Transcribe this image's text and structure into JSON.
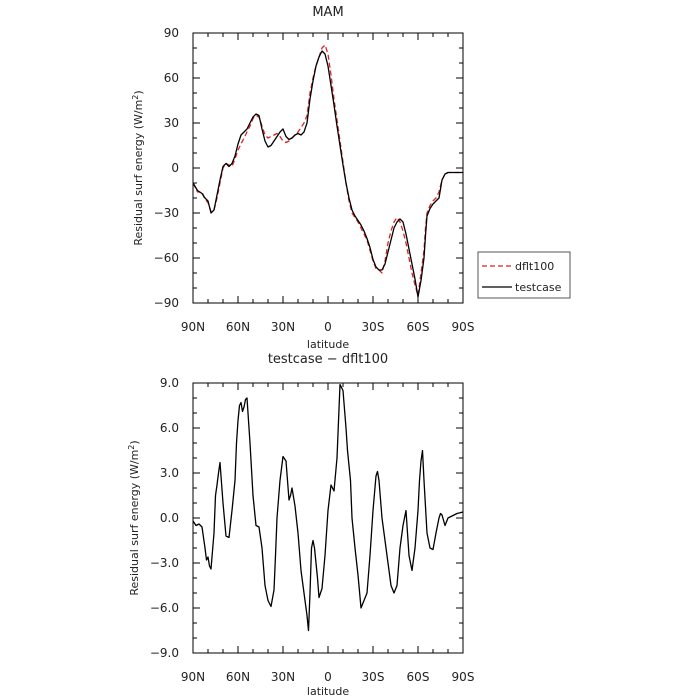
{
  "chart_data": [
    {
      "type": "line",
      "title": "MAM",
      "xlabel": "latitude",
      "ylabel": "Residual surf energy (W/m²)",
      "ylabel_main": "Residual surf energy (W/m",
      "ylabel_sup": "2",
      "ylabel_end": ")",
      "xlim": [
        90,
        -90
      ],
      "ylim": [
        -90,
        90
      ],
      "x_ticks": [
        {
          "value": 90,
          "label": "90N"
        },
        {
          "value": 60,
          "label": "60N"
        },
        {
          "value": 30,
          "label": "30N"
        },
        {
          "value": 0,
          "label": "0"
        },
        {
          "value": -30,
          "label": "30S"
        },
        {
          "value": -60,
          "label": "60S"
        },
        {
          "value": -90,
          "label": "90S"
        }
      ],
      "y_ticks": [
        {
          "value": 90,
          "label": "90"
        },
        {
          "value": 60,
          "label": "60"
        },
        {
          "value": 30,
          "label": "30"
        },
        {
          "value": 0,
          "label": "0"
        },
        {
          "value": -30,
          "label": "−30"
        },
        {
          "value": -60,
          "label": "−60"
        },
        {
          "value": -90,
          "label": "−90"
        }
      ],
      "legend": {
        "placement": "right-bottom",
        "entries": [
          "dflt100",
          "testcase"
        ]
      },
      "series": [
        {
          "name": "dflt100",
          "color": "#dd2222",
          "dash": true,
          "x": [
            90,
            87,
            84,
            82,
            80,
            78,
            76,
            74,
            72,
            70,
            68,
            66,
            64,
            62,
            60,
            58,
            56,
            54,
            52,
            50,
            48,
            46,
            44,
            42,
            40,
            38,
            36,
            34,
            32,
            30,
            28,
            26,
            24,
            22,
            20,
            18,
            16,
            14,
            12,
            10,
            8,
            6,
            4,
            2,
            0,
            -2,
            -4,
            -6,
            -8,
            -10,
            -12,
            -14,
            -16,
            -18,
            -20,
            -22,
            -24,
            -26,
            -28,
            -30,
            -32,
            -34,
            -36,
            -38,
            -40,
            -42,
            -44,
            -46,
            -48,
            -50,
            -52,
            -54,
            -56,
            -58,
            -60,
            -62,
            -64,
            -65,
            -66,
            -68,
            -70,
            -72,
            -74,
            -76,
            -78,
            -80,
            -82,
            -84,
            -86,
            -88,
            -90
          ],
          "values": [
            -10,
            -16,
            -16,
            -21,
            -23,
            -29,
            -28,
            -20,
            -10,
            0,
            3,
            2,
            1,
            6,
            12,
            16,
            20,
            24,
            28,
            33,
            35,
            34,
            28,
            22,
            20,
            21,
            22,
            23,
            21,
            18,
            17,
            18,
            20,
            22,
            24,
            27,
            30,
            35,
            50,
            60,
            68,
            74,
            80,
            82,
            76,
            62,
            46,
            32,
            18,
            4,
            -10,
            -22,
            -30,
            -33,
            -36,
            -40,
            -44,
            -48,
            -55,
            -62,
            -67,
            -68,
            -70,
            -62,
            -50,
            -42,
            -36,
            -33,
            -36,
            -42,
            -50,
            -60,
            -70,
            -78,
            -85,
            -70,
            -55,
            -40,
            -30,
            -25,
            -22,
            -20,
            -16,
            -8,
            -4,
            -3,
            -3,
            -3,
            -3,
            -3,
            -3
          ]
        },
        {
          "name": "testcase",
          "color": "#000000",
          "dash": false,
          "x": [
            90,
            87,
            84,
            82,
            80,
            78,
            76,
            74,
            72,
            70,
            68,
            66,
            64,
            62,
            60,
            58,
            56,
            54,
            52,
            50,
            48,
            46,
            44,
            42,
            40,
            38,
            36,
            34,
            32,
            30,
            28,
            26,
            24,
            22,
            20,
            18,
            16,
            14,
            12,
            10,
            8,
            6,
            4,
            2,
            0,
            -2,
            -4,
            -6,
            -8,
            -10,
            -12,
            -14,
            -16,
            -18,
            -20,
            -22,
            -24,
            -26,
            -28,
            -30,
            -32,
            -34,
            -36,
            -38,
            -40,
            -42,
            -44,
            -46,
            -48,
            -50,
            -52,
            -54,
            -56,
            -58,
            -60,
            -62,
            -64,
            -65,
            -66,
            -68,
            -70,
            -72,
            -74,
            -76,
            -78,
            -80,
            -82,
            -84,
            -86,
            -88,
            -90
          ],
          "values": [
            -10,
            -15,
            -17,
            -20,
            -22,
            -30,
            -28,
            -18,
            -8,
            1,
            3,
            1,
            3,
            8,
            16,
            22,
            24,
            26,
            30,
            34,
            36,
            35,
            26,
            18,
            14,
            15,
            18,
            21,
            24,
            26,
            21,
            19,
            20,
            22,
            23,
            22,
            24,
            30,
            46,
            58,
            68,
            74,
            78,
            76,
            68,
            55,
            42,
            28,
            15,
            2,
            -10,
            -20,
            -28,
            -32,
            -35,
            -38,
            -42,
            -47,
            -53,
            -61,
            -66,
            -68,
            -68,
            -64,
            -56,
            -48,
            -40,
            -36,
            -34,
            -36,
            -44,
            -54,
            -64,
            -74,
            -86,
            -75,
            -60,
            -45,
            -32,
            -27,
            -24,
            -22,
            -20,
            -8,
            -4,
            -3,
            -3,
            -3,
            -3,
            -3,
            -3
          ]
        }
      ]
    },
    {
      "type": "line",
      "title": "testcase − dflt100",
      "xlabel": "latitude",
      "ylabel": "Residual surf energy (W/m²)",
      "ylabel_main": "Residual surf energy (W/m",
      "ylabel_sup": "2",
      "ylabel_end": ")",
      "xlim": [
        90,
        -90
      ],
      "ylim": [
        -9,
        9
      ],
      "x_ticks": [
        {
          "value": 90,
          "label": "90N"
        },
        {
          "value": 60,
          "label": "60N"
        },
        {
          "value": 30,
          "label": "30N"
        },
        {
          "value": 0,
          "label": "0"
        },
        {
          "value": -30,
          "label": "30S"
        },
        {
          "value": -60,
          "label": "60S"
        },
        {
          "value": -90,
          "label": "90S"
        }
      ],
      "y_ticks": [
        {
          "value": 9,
          "label": "9.0"
        },
        {
          "value": 6,
          "label": "6.0"
        },
        {
          "value": 3,
          "label": "3.0"
        },
        {
          "value": 0,
          "label": "0.0"
        },
        {
          "value": -3,
          "label": "−3.0"
        },
        {
          "value": -6,
          "label": "−6.0"
        },
        {
          "value": -9,
          "label": "−9.0"
        }
      ],
      "series": [
        {
          "name": "testcase − dflt100",
          "color": "#000000",
          "dash": false,
          "x": [
            90,
            88,
            86,
            84,
            82,
            81,
            80,
            79,
            78,
            76,
            75,
            74,
            73,
            72,
            70,
            68,
            66,
            64,
            62,
            61,
            60,
            59,
            58,
            57,
            56,
            55,
            54,
            52,
            50,
            48,
            46,
            44,
            42,
            40,
            38,
            36,
            35,
            34,
            32,
            30,
            28,
            27,
            26,
            25,
            24,
            22,
            20,
            18,
            16,
            14,
            13,
            12,
            11,
            10,
            9,
            8,
            7,
            6,
            4,
            2,
            0,
            -2,
            -4,
            -6,
            -8,
            -10,
            -12,
            -13,
            -14,
            -15,
            -16,
            -18,
            -20,
            -22,
            -24,
            -26,
            -28,
            -30,
            -32,
            -33,
            -34,
            -36,
            -38,
            -40,
            -42,
            -44,
            -46,
            -48,
            -50,
            -52,
            -54,
            -56,
            -58,
            -60,
            -61,
            -62,
            -63,
            -64,
            -66,
            -68,
            -70,
            -72,
            -74,
            -75,
            -76,
            -78,
            -80,
            -82,
            -84,
            -86,
            -88,
            -90
          ],
          "values": [
            -0.2,
            -0.5,
            -0.4,
            -0.6,
            -2.0,
            -2.8,
            -2.6,
            -3.2,
            -3.4,
            -1.0,
            1.5,
            2.2,
            3.0,
            3.7,
            1.0,
            -1.2,
            -1.3,
            0.5,
            2.5,
            5.0,
            6.5,
            7.5,
            7.7,
            7.1,
            7.4,
            7.9,
            8.0,
            5.0,
            1.5,
            -0.5,
            -0.6,
            -2.0,
            -4.5,
            -5.5,
            -5.9,
            -4.8,
            -2.5,
            0.0,
            2.5,
            4.1,
            3.8,
            2.5,
            1.2,
            1.5,
            2.0,
            0.8,
            -1.0,
            -3.5,
            -5.0,
            -6.5,
            -7.5,
            -5.0,
            -2.0,
            -1.5,
            -2.0,
            -3.0,
            -4.0,
            -5.3,
            -4.7,
            -2.5,
            0.5,
            2.2,
            1.8,
            4.0,
            8.9,
            8.5,
            6.0,
            4.5,
            3.5,
            2.5,
            0.0,
            -2.0,
            -3.8,
            -6.0,
            -5.5,
            -5.0,
            -2.5,
            0.5,
            2.8,
            3.1,
            2.5,
            0.0,
            -1.5,
            -3.0,
            -4.5,
            -5.0,
            -4.5,
            -2.0,
            -0.5,
            0.5,
            -2.5,
            -3.5,
            -2.0,
            0.5,
            2.5,
            3.8,
            4.5,
            2.5,
            -1.0,
            -2.0,
            -2.1,
            -1.0,
            0.0,
            0.3,
            0.2,
            -0.5,
            0.0,
            0.1,
            0.2,
            0.3,
            0.35,
            0.4
          ]
        }
      ]
    }
  ]
}
